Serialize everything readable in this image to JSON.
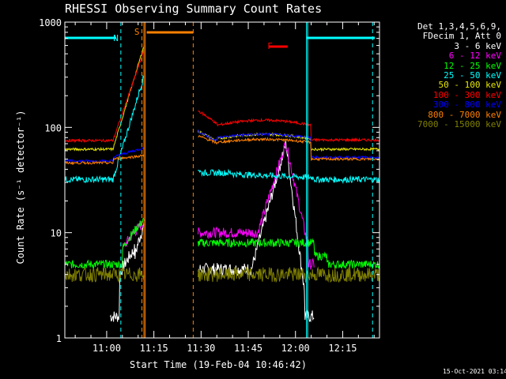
{
  "chart_data": {
    "type": "line",
    "title": "RHESSI Observing Summary Count Rates",
    "xlabel": "Start Time (19-Feb-04 10:46:42)",
    "ylabel": "Count Rate (s⁻¹ detector⁻¹)",
    "y_scale": "log",
    "ylim": [
      1,
      1000
    ],
    "xlim_minutes": [
      46.7,
      146.7
    ],
    "y_ticks": [
      "1",
      "10",
      "100",
      "1000"
    ],
    "x_ticks": [
      {
        "label": "11:00",
        "value": 60
      },
      {
        "label": "11:15",
        "value": 75
      },
      {
        "label": "11:30",
        "value": 90
      },
      {
        "label": "11:45",
        "value": 105
      },
      {
        "label": "12:00",
        "value": 120
      },
      {
        "label": "12:15",
        "value": 135
      }
    ],
    "legend_header": [
      "Det 1,3,4,5,6,9,",
      "FDecim 1, Att 0"
    ],
    "series": [
      {
        "name": "3 - 6 keV",
        "color": "#ffffff"
      },
      {
        "name": "6 - 12 keV",
        "color": "#ff00ff"
      },
      {
        "name": "12 - 25 keV",
        "color": "#00ff00"
      },
      {
        "name": "25 - 50 keV",
        "color": "#00ffff"
      },
      {
        "name": "50 - 100 keV",
        "color": "#e6e600"
      },
      {
        "name": "100 - 300 keV",
        "color": "#ff0000"
      },
      {
        "name": "300 - 800 keV",
        "color": "#0000ff"
      },
      {
        "name": "800 - 7000 keV",
        "color": "#ff8000"
      },
      {
        "name": "7000 - 15000 keV",
        "color": "#808000"
      }
    ],
    "segments": [
      {
        "name": "night",
        "start": 46.7,
        "end": 64.5
      },
      {
        "name": "night",
        "start": 123.5,
        "end": 146.7
      }
    ],
    "markers": [
      {
        "label": "N",
        "value": 64.5
      },
      {
        "label": "S",
        "value": 71.2
      },
      {
        "label": "F",
        "value": 113.5
      }
    ],
    "annotations": {
      "saa_start": 72.2,
      "saa_end": 87.5,
      "flare_start": 111.5,
      "flare_end": 117.5
    }
  },
  "timestamp": "15-Oct-2021 03:14"
}
